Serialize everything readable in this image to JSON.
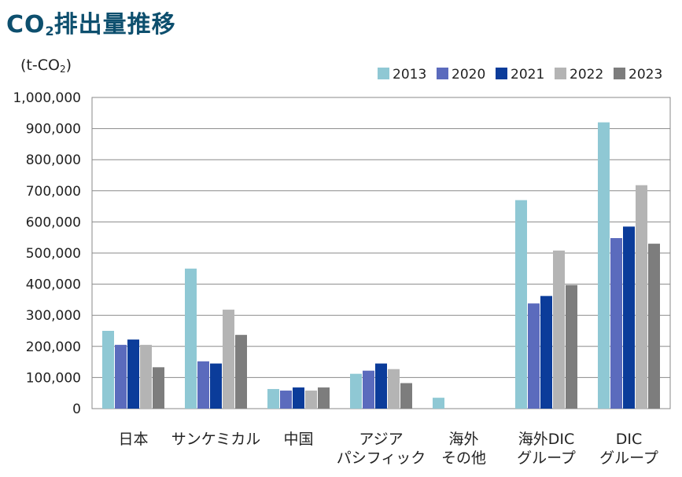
{
  "title": {
    "main": "CO",
    "sub": "2",
    "rest": "排出量推移"
  },
  "unit": {
    "open": "(t-CO",
    "sub": "2",
    "close": ")"
  },
  "colors": {
    "2013": "#8fc8d4",
    "2020": "#5b6bbd",
    "2021": "#0b3c9a",
    "2022": "#b4b4b4",
    "2023": "#7d7d7d",
    "grid": "#8a8a8a",
    "title": "#0d4f6e"
  },
  "chart_data": {
    "type": "bar",
    "categories": [
      [
        "日本"
      ],
      [
        "サンケミカル"
      ],
      [
        "中国"
      ],
      [
        "アジア",
        "パシフィック"
      ],
      [
        "海外",
        "その他"
      ],
      [
        "海外DIC",
        "グループ"
      ],
      [
        "DIC",
        "グループ"
      ]
    ],
    "series": [
      {
        "name": "2013",
        "values": [
          250000,
          450000,
          63000,
          112000,
          35000,
          670000,
          920000
        ]
      },
      {
        "name": "2020",
        "values": [
          205000,
          152000,
          58000,
          122000,
          0,
          338000,
          548000
        ]
      },
      {
        "name": "2021",
        "values": [
          222000,
          145000,
          68000,
          145000,
          0,
          362000,
          585000
        ]
      },
      {
        "name": "2022",
        "values": [
          205000,
          318000,
          58000,
          127000,
          0,
          508000,
          718000
        ]
      },
      {
        "name": "2023",
        "values": [
          133000,
          237000,
          68000,
          82000,
          0,
          397000,
          530000
        ]
      }
    ],
    "yticks": [
      "0",
      "100,000",
      "200,000",
      "300,000",
      "400,000",
      "500,000",
      "600,000",
      "700,000",
      "800,000",
      "900,000",
      "1,000,000"
    ],
    "ylim": [
      0,
      1000000
    ],
    "grid": true,
    "legend_position": "top-right"
  }
}
